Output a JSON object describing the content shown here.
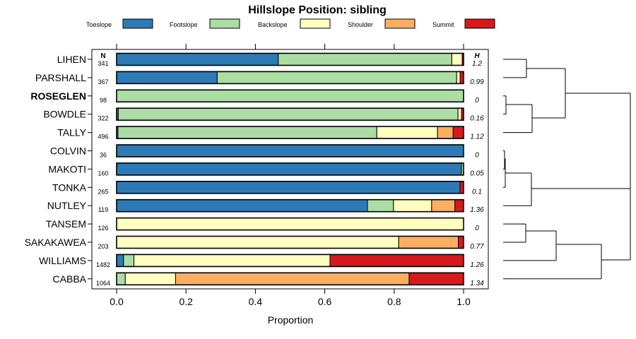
{
  "chart_data": {
    "type": "bar",
    "stacked": true,
    "orientation": "horizontal",
    "title": "Hillslope Position: sibling",
    "xlabel": "Proportion",
    "xlim": [
      0,
      1
    ],
    "x_ticks": [
      "0.0",
      "0.2",
      "0.4",
      "0.6",
      "0.8",
      "1.0"
    ],
    "legend_position": "top",
    "legend": [
      {
        "name": "Toeslope",
        "color": "#2c7bb6"
      },
      {
        "name": "Footslope",
        "color": "#abdda4"
      },
      {
        "name": "Backslope",
        "color": "#ffffbf"
      },
      {
        "name": "Shoulder",
        "color": "#fdae61"
      },
      {
        "name": "Summit",
        "color": "#d7191c"
      }
    ],
    "n_header": "N",
    "h_header": "H",
    "rows": [
      {
        "name": "LIHEN",
        "n": "341",
        "h": "1.2",
        "bold": false,
        "values": [
          0.466,
          0.5,
          0.03,
          0.0,
          0.004
        ]
      },
      {
        "name": "PARSHALL",
        "n": "367",
        "h": "0.99",
        "bold": false,
        "values": [
          0.29,
          0.69,
          0.01,
          0.0,
          0.01
        ]
      },
      {
        "name": "ROSEGLEN",
        "n": "98",
        "h": "0",
        "bold": true,
        "values": [
          0.0,
          1.0,
          0.0,
          0.0,
          0.0
        ]
      },
      {
        "name": "BOWDLE",
        "n": "322",
        "h": "0.16",
        "bold": false,
        "values": [
          0.005,
          0.979,
          0.01,
          0.0,
          0.006
        ]
      },
      {
        "name": "TALLY",
        "n": "496",
        "h": "1.12",
        "bold": false,
        "values": [
          0.004,
          0.746,
          0.175,
          0.045,
          0.03
        ]
      },
      {
        "name": "COLVIN",
        "n": "36",
        "h": "0",
        "bold": false,
        "values": [
          1.0,
          0.0,
          0.0,
          0.0,
          0.0
        ]
      },
      {
        "name": "MAKOTI",
        "n": "160",
        "h": "0.05",
        "bold": false,
        "values": [
          0.994,
          0.006,
          0.0,
          0.0,
          0.0
        ]
      },
      {
        "name": "TONKA",
        "n": "265",
        "h": "0.1",
        "bold": false,
        "values": [
          0.99,
          0.0,
          0.0,
          0.0,
          0.01
        ]
      },
      {
        "name": "NUTLEY",
        "n": "119",
        "h": "1.36",
        "bold": false,
        "values": [
          0.723,
          0.075,
          0.11,
          0.067,
          0.025
        ]
      },
      {
        "name": "TANSEM",
        "n": "126",
        "h": "0",
        "bold": false,
        "values": [
          0.0,
          0.0,
          1.0,
          0.0,
          0.0
        ]
      },
      {
        "name": "SAKAKAWEA",
        "n": "203",
        "h": "0.77",
        "bold": false,
        "values": [
          0.0,
          0.0,
          0.813,
          0.172,
          0.015
        ]
      },
      {
        "name": "WILLIAMS",
        "n": "1482",
        "h": "1.26",
        "bold": false,
        "values": [
          0.02,
          0.03,
          0.565,
          0.0,
          0.385
        ]
      },
      {
        "name": "CABBA",
        "n": "1064",
        "h": "1.34",
        "bold": false,
        "values": [
          0.0,
          0.025,
          0.145,
          0.673,
          0.157
        ]
      }
    ]
  }
}
